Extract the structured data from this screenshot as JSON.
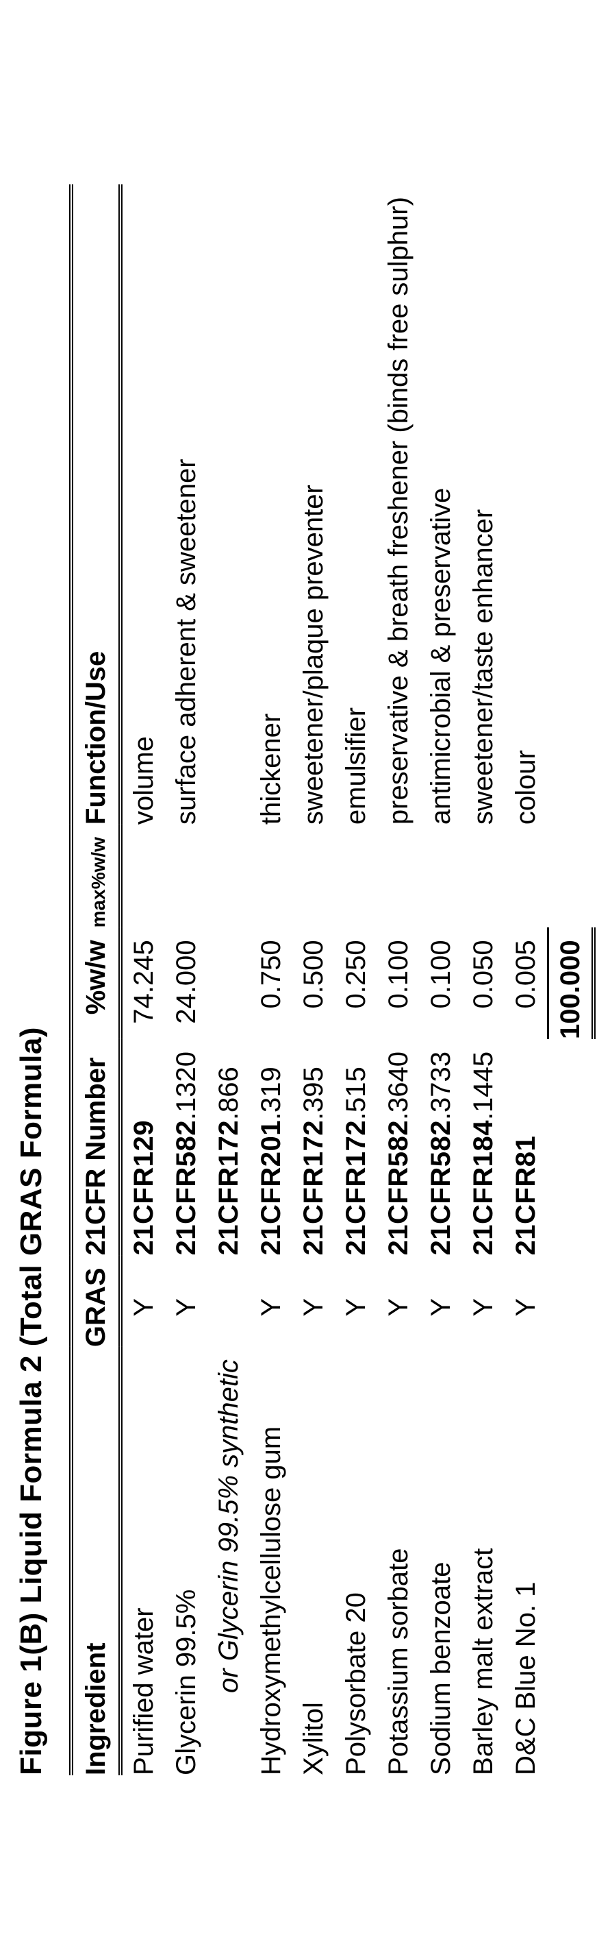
{
  "figure_title": "Figure 1(B) Liquid Formula 2 (Total GRAS Formula)",
  "columns": {
    "ingredient": "Ingredient",
    "gras": "GRAS",
    "cfr": "21CFR Number",
    "pct": "%w/w",
    "max": "max%w/w",
    "func": "Function/Use"
  },
  "rows": [
    {
      "ingredient": "Purified water",
      "gras": "Y",
      "cfr_bold": "21CFR129",
      "cfr_tail": "",
      "pct": "74.245",
      "func": "volume"
    },
    {
      "ingredient": "Glycerin 99.5%",
      "gras": "Y",
      "cfr_bold": "21CFR582",
      "cfr_tail": ".1320",
      "pct": "24.000",
      "func": "surface adherent & sweetener"
    },
    {
      "alt": true,
      "ingredient": "or Glycerin 99.5% synthetic",
      "gras": "",
      "cfr_bold": "21CFR172",
      "cfr_tail": ".866",
      "pct": "",
      "func": ""
    },
    {
      "ingredient": "Hydroxymethylcellulose gum",
      "gras": "Y",
      "cfr_bold": "21CFR201",
      "cfr_tail": ".319",
      "pct": "0.750",
      "func": "thickener"
    },
    {
      "ingredient": "Xylitol",
      "gras": "Y",
      "cfr_bold": "21CFR172",
      "cfr_tail": ".395",
      "pct": "0.500",
      "func": "sweetener/plaque preventer"
    },
    {
      "ingredient": "Polysorbate 20",
      "gras": "Y",
      "cfr_bold": "21CFR172",
      "cfr_tail": ".515",
      "pct": "0.250",
      "func": "emulsifier"
    },
    {
      "ingredient": "Potassium sorbate",
      "gras": "Y",
      "cfr_bold": "21CFR582",
      "cfr_tail": ".3640",
      "pct": "0.100",
      "func": "preservative & breath freshener (binds free sulphur)"
    },
    {
      "ingredient": "Sodium benzoate",
      "gras": "Y",
      "cfr_bold": "21CFR582",
      "cfr_tail": ".3733",
      "pct": "0.100",
      "func": "antimicrobial & preservative"
    },
    {
      "ingredient": "Barley malt extract",
      "gras": "Y",
      "cfr_bold": "21CFR184",
      "cfr_tail": ".1445",
      "pct": "0.050",
      "func": "sweetener/taste enhancer"
    },
    {
      "ingredient": "D&C Blue No. 1",
      "gras": "Y",
      "cfr_bold": "21CFR81",
      "cfr_tail": "",
      "pct": "0.005",
      "func": "colour"
    }
  ],
  "total": "100.000"
}
